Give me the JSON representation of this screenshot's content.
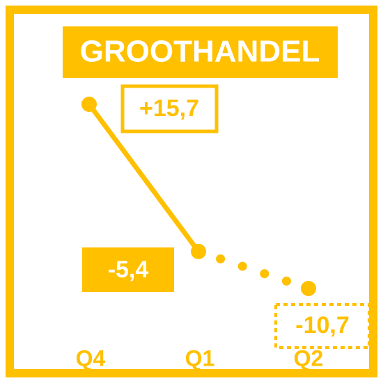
{
  "chart_data": {
    "type": "line",
    "title": "GROOTHANDEL",
    "categories": [
      "Q4",
      "Q1",
      "Q2"
    ],
    "values": [
      15.7,
      -5.4,
      -10.7
    ],
    "value_labels": [
      "+15,7",
      "-5,4",
      "-10,7"
    ],
    "color": "#FFC000"
  }
}
